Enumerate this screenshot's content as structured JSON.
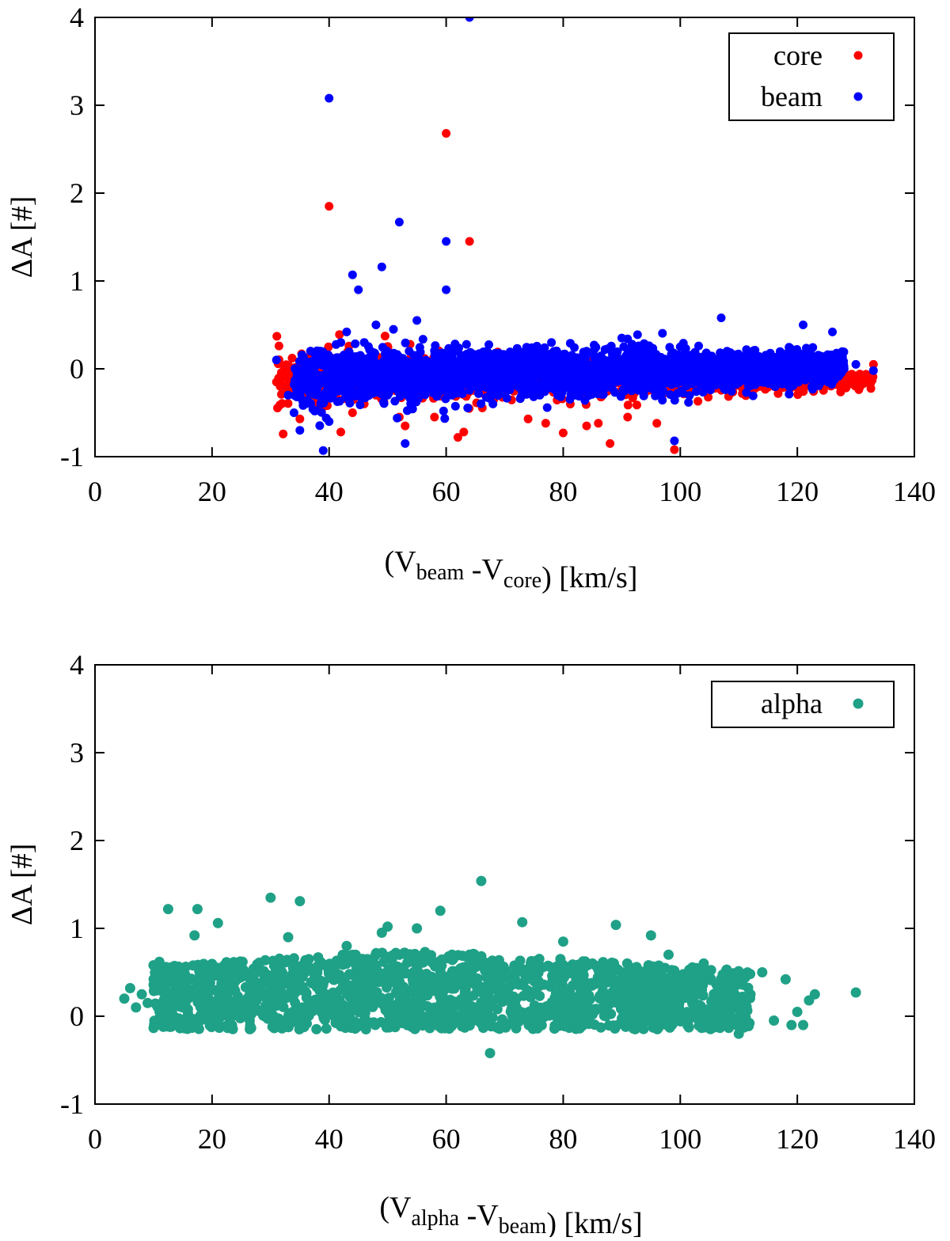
{
  "chart_data": [
    {
      "type": "scatter",
      "xlabel": {
        "prefix": "(V",
        "sub1": "beam",
        "mid": " -V",
        "sub2": "core",
        "suffix": ") [km/s]"
      },
      "ylabel": "ΔA [#]",
      "xlim": [
        0,
        140
      ],
      "ylim": [
        -1,
        4
      ],
      "xticks": [
        "0",
        "20",
        "40",
        "60",
        "80",
        "100",
        "120",
        "140"
      ],
      "yticks": [
        "-1",
        "0",
        "1",
        "2",
        "3",
        "4"
      ],
      "legend_position": "top-right",
      "series": [
        {
          "name": "core",
          "color": "#ff0000",
          "x": [
            31,
            32,
            33,
            33.5,
            34,
            34.5,
            35,
            35.5,
            36,
            36.5,
            37,
            37.5,
            38,
            38.5,
            39,
            35,
            38,
            40,
            42,
            44,
            46,
            48,
            50,
            52,
            53,
            55,
            58,
            60,
            62,
            63,
            64,
            66,
            70,
            74,
            77,
            80,
            84,
            86,
            88,
            91,
            96,
            99,
            100,
            104,
            110,
            116,
            120,
            126,
            133
          ],
          "y": [
            -0.15,
            -0.1,
            -0.2,
            -0.12,
            -0.05,
            -0.25,
            -0.18,
            -0.1,
            -0.3,
            -0.22,
            -0.08,
            -0.15,
            -0.25,
            -0.2,
            -0.35,
            -0.57,
            -0.42,
            1.85,
            -0.72,
            -0.5,
            -0.4,
            -0.3,
            -0.2,
            -0.55,
            -0.65,
            -0.3,
            -0.55,
            2.68,
            -0.78,
            -0.72,
            1.45,
            -0.25,
            -0.3,
            -0.57,
            -0.62,
            -0.73,
            -0.65,
            -0.62,
            -0.85,
            -0.55,
            -0.62,
            -0.92,
            -0.2,
            -0.15,
            -0.1,
            -0.1,
            -0.05,
            0.02,
            0.05
          ]
        },
        {
          "name": "beam",
          "color": "#0000ff",
          "x": [
            31,
            33,
            34,
            35,
            36,
            37,
            38,
            39,
            40,
            40,
            41,
            42,
            43,
            44,
            45,
            46,
            47,
            48,
            49,
            50,
            51,
            52,
            53,
            54,
            55,
            56,
            57,
            58,
            59,
            60,
            60,
            61,
            62,
            63,
            64,
            65,
            66,
            67,
            68,
            70,
            72,
            74,
            76,
            78,
            80,
            82,
            84,
            86,
            88,
            90,
            92,
            94,
            96,
            98,
            99,
            100,
            102,
            104,
            106,
            107,
            108,
            110,
            112,
            114,
            116,
            118,
            120,
            121,
            122,
            124,
            126,
            128,
            130,
            133
          ],
          "y": [
            0.1,
            -0.3,
            -0.5,
            -0.7,
            -0.4,
            -0.2,
            -0.3,
            -0.93,
            3.08,
            -0.6,
            -0.1,
            0.3,
            0.42,
            1.07,
            0.9,
            0.3,
            -0.2,
            0.5,
            1.16,
            -0.3,
            0.45,
            1.67,
            -0.85,
            -0.4,
            0.55,
            -0.2,
            -0.1,
            0.1,
            -0.2,
            1.45,
            0.9,
            -0.3,
            0.2,
            -0.1,
            4.0,
            0.1,
            -0.2,
            0.2,
            -0.4,
            0.1,
            -0.1,
            0.2,
            -0.3,
            0.3,
            0.1,
            -0.3,
            0.2,
            -0.2,
            0.1,
            0.35,
            -0.1,
            0.2,
            0.1,
            0.0,
            -0.82,
            0.25,
            0.1,
            -0.15,
            0.1,
            0.58,
            0.2,
            -0.1,
            0.15,
            -0.05,
            0.1,
            0.05,
            0.0,
            0.5,
            0.2,
            0.1,
            0.42,
            0.0,
            0.05,
            -0.02
          ]
        }
      ]
    },
    {
      "type": "scatter",
      "xlabel": {
        "prefix": "(V",
        "sub1": "alpha",
        "mid": " -V",
        "sub2": "beam",
        "suffix": ") [km/s]"
      },
      "ylabel": "ΔA [#]",
      "xlim": [
        0,
        140
      ],
      "ylim": [
        -1,
        4
      ],
      "xticks": [
        "0",
        "20",
        "40",
        "60",
        "80",
        "100",
        "120",
        "140"
      ],
      "yticks": [
        "-1",
        "0",
        "1",
        "2",
        "3",
        "4"
      ],
      "legend_position": "top-right",
      "series": [
        {
          "name": "alpha",
          "color": "#1fa187",
          "x": [
            5,
            6,
            7,
            8,
            9,
            10,
            11,
            12,
            12.5,
            13,
            14,
            15,
            16,
            17,
            17.5,
            18,
            19,
            20,
            21,
            22,
            24,
            26,
            28,
            30,
            31,
            33,
            35,
            35.5,
            38,
            40,
            43,
            46,
            49,
            50,
            53,
            55,
            58,
            59,
            61,
            63,
            65,
            66,
            67.5,
            70,
            72,
            73,
            75,
            78,
            80,
            83,
            85,
            88,
            89,
            90,
            92,
            95,
            96,
            98,
            100,
            102,
            104,
            106,
            108,
            110,
            112,
            114,
            116,
            118,
            119,
            120,
            121,
            122,
            123,
            130
          ],
          "y": [
            0.2,
            0.32,
            0.1,
            0.25,
            0.15,
            0.58,
            0.62,
            0.3,
            1.22,
            -0.12,
            0.4,
            0.1,
            -0.05,
            0.92,
            1.22,
            0.2,
            0.5,
            0.3,
            1.06,
            0.1,
            0.4,
            0.2,
            0.6,
            1.35,
            0.3,
            0.9,
            1.31,
            0.1,
            0.5,
            0.2,
            0.8,
            0.4,
            0.95,
            1.02,
            0.5,
            1.0,
            0.3,
            1.2,
            0.7,
            0.1,
            0.6,
            1.54,
            -0.42,
            0.5,
            0.2,
            1.07,
            0.4,
            0.1,
            0.85,
            0.3,
            0.6,
            0.2,
            1.04,
            0.5,
            0.3,
            0.92,
            0.1,
            0.7,
            0.4,
            0.2,
            0.6,
            0.1,
            0.3,
            -0.2,
            0.25,
            0.5,
            -0.05,
            0.42,
            -0.1,
            0.05,
            -0.1,
            0.18,
            0.25,
            0.27
          ]
        }
      ]
    }
  ]
}
